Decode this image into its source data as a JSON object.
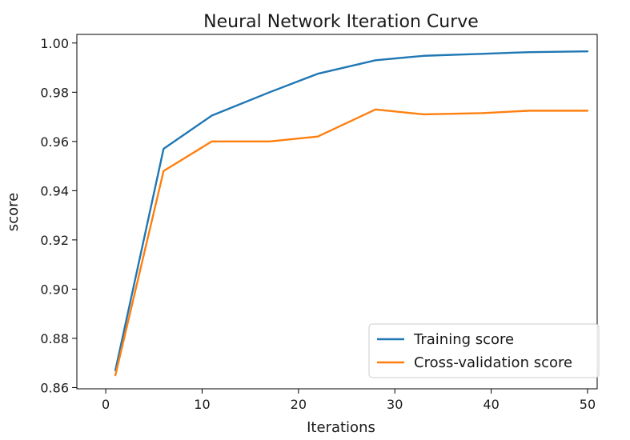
{
  "chart_data": {
    "type": "line",
    "title": "Neural Network Iteration Curve",
    "xlabel": "Iterations",
    "ylabel": "score",
    "xlim": [
      -3,
      51
    ],
    "ylim": [
      0.8595,
      1.0035
    ],
    "xticks": [
      0,
      10,
      20,
      30,
      40,
      50
    ],
    "yticks": [
      0.86,
      0.88,
      0.9,
      0.92,
      0.94,
      0.96,
      0.98,
      1.0
    ],
    "ytick_labels": [
      "0.86",
      "0.88",
      "0.90",
      "0.92",
      "0.94",
      "0.96",
      "0.98",
      "1.00"
    ],
    "grid": false,
    "legend_position": "lower-right",
    "series": [
      {
        "name": "Training score",
        "color": "#1f77b4",
        "x": [
          1,
          6,
          11,
          17,
          22,
          28,
          33,
          39,
          44,
          50
        ],
        "y": [
          0.867,
          0.957,
          0.9705,
          0.98,
          0.9875,
          0.993,
          0.9948,
          0.9956,
          0.9963,
          0.9966
        ]
      },
      {
        "name": "Cross-validation score",
        "color": "#ff7f0e",
        "x": [
          1,
          6,
          11,
          17,
          22,
          28,
          33,
          39,
          44,
          50
        ],
        "y": [
          0.865,
          0.948,
          0.96,
          0.96,
          0.962,
          0.973,
          0.971,
          0.9715,
          0.9725,
          0.9725
        ]
      }
    ]
  }
}
